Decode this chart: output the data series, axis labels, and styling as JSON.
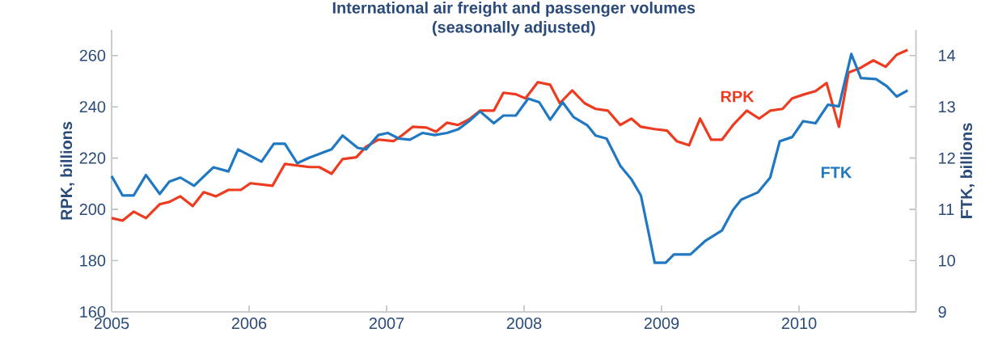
{
  "chart_data": {
    "type": "line",
    "title": "International air freight and passenger volumes",
    "subtitle": "(seasonally adjusted)",
    "ylabel": "RPK, billions",
    "y2label": "FTK, billions",
    "xlim": [
      2005,
      2010.85
    ],
    "xticks": [
      2005,
      2006,
      2007,
      2008,
      2009,
      2010
    ],
    "ylim": [
      160,
      270
    ],
    "yticks": [
      160,
      180,
      200,
      220,
      240,
      260
    ],
    "y2lim": [
      9,
      14.5
    ],
    "y2ticks": [
      9,
      10,
      11,
      12,
      13,
      14
    ],
    "series": [
      {
        "name": "RPK",
        "color": "#ee3b1f",
        "x": [
          2005.0,
          2005.08,
          2005.16,
          2005.25,
          2005.35,
          2005.42,
          2005.5,
          2005.59,
          2005.67,
          2005.76,
          2005.85,
          2005.94,
          2006.01,
          2006.17,
          2006.26,
          2006.44,
          2006.51,
          2006.6,
          2006.68,
          2006.78,
          2006.85,
          2006.94,
          2007.05,
          2007.11,
          2007.19,
          2007.29,
          2007.36,
          2007.44,
          2007.52,
          2007.6,
          2007.68,
          2007.78,
          2007.85,
          2007.94,
          2008.01,
          2008.1,
          2008.19,
          2008.26,
          2008.35,
          2008.44,
          2008.52,
          2008.61,
          2008.7,
          2008.78,
          2008.85,
          2008.95,
          2009.04,
          2009.11,
          2009.2,
          2009.28,
          2009.36,
          2009.44,
          2009.52,
          2009.62,
          2009.71,
          2009.79,
          2009.88,
          2009.95,
          2010.04,
          2010.12,
          2010.2,
          2010.29,
          2010.36,
          2010.44,
          2010.54,
          2010.63,
          2010.71,
          2010.79
        ],
        "values": [
          196.6,
          195.6,
          199.1,
          196.6,
          202.0,
          202.9,
          205.1,
          201.3,
          206.7,
          205.1,
          207.6,
          207.6,
          210.2,
          209.2,
          217.7,
          216.5,
          216.5,
          213.9,
          219.6,
          220.3,
          224.4,
          227.2,
          226.6,
          228.8,
          232.2,
          231.9,
          230.3,
          233.8,
          232.9,
          235.1,
          238.5,
          238.5,
          245.5,
          244.9,
          243.3,
          249.6,
          248.6,
          241.4,
          246.4,
          241.4,
          239.2,
          238.5,
          232.9,
          235.4,
          232.2,
          231.3,
          230.7,
          226.6,
          225.0,
          235.4,
          227.2,
          227.2,
          232.9,
          238.5,
          235.4,
          238.5,
          239.2,
          243.3,
          244.9,
          246.1,
          249.3,
          232.2,
          253.4,
          255.0,
          258.1,
          255.6,
          260.3,
          262.2
        ]
      },
      {
        "name": "FTK",
        "color": "#1f78c1",
        "axis": "y2",
        "x": [
          2005.0,
          2005.08,
          2005.16,
          2005.25,
          2005.35,
          2005.42,
          2005.5,
          2005.6,
          2005.74,
          2005.85,
          2005.92,
          2006.09,
          2006.18,
          2006.26,
          2006.35,
          2006.44,
          2006.6,
          2006.68,
          2006.79,
          2006.85,
          2006.94,
          2007.01,
          2007.09,
          2007.17,
          2007.26,
          2007.35,
          2007.44,
          2007.52,
          2007.6,
          2007.68,
          2007.78,
          2007.85,
          2007.94,
          2008.03,
          2008.11,
          2008.19,
          2008.28,
          2008.36,
          2008.46,
          2008.52,
          2008.6,
          2008.7,
          2008.78,
          2008.85,
          2008.92,
          2008.95,
          2009.03,
          2009.09,
          2009.21,
          2009.32,
          2009.44,
          2009.52,
          2009.58,
          2009.7,
          2009.79,
          2009.86,
          2009.95,
          2010.03,
          2010.12,
          2010.21,
          2010.29,
          2010.38,
          2010.45,
          2010.56,
          2010.64,
          2010.71,
          2010.79
        ],
        "values": [
          11.65,
          11.27,
          11.27,
          11.67,
          11.3,
          11.54,
          11.62,
          11.46,
          11.82,
          11.74,
          12.17,
          11.93,
          12.28,
          12.28,
          11.9,
          12.01,
          12.17,
          12.44,
          12.2,
          12.17,
          12.45,
          12.49,
          12.38,
          12.36,
          12.49,
          12.45,
          12.49,
          12.56,
          12.72,
          12.91,
          12.68,
          12.83,
          12.83,
          13.16,
          13.09,
          12.75,
          13.09,
          12.8,
          12.64,
          12.44,
          12.38,
          11.85,
          11.59,
          11.27,
          10.36,
          9.96,
          9.96,
          10.12,
          10.12,
          10.39,
          10.59,
          10.99,
          11.19,
          11.33,
          11.62,
          12.33,
          12.41,
          12.72,
          12.68,
          13.04,
          13.01,
          14.03,
          13.56,
          13.54,
          13.4,
          13.2,
          13.32
        ]
      }
    ]
  }
}
